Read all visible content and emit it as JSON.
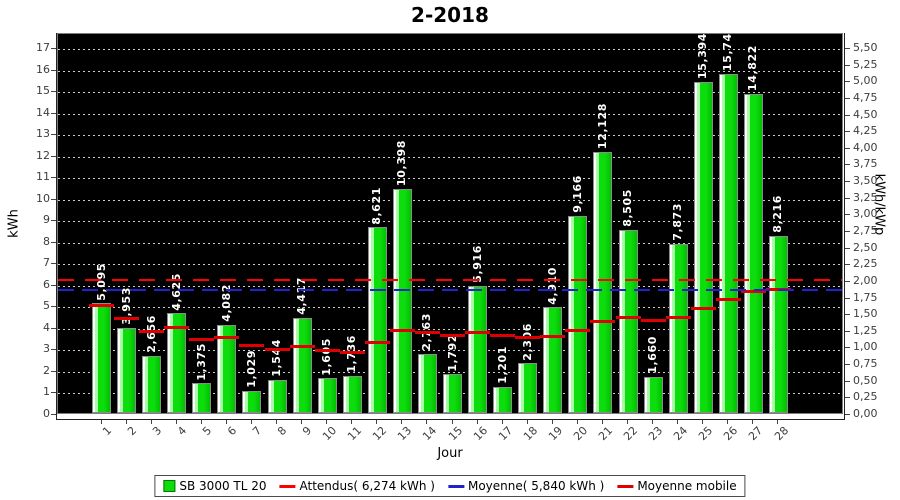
{
  "title": "2-2018",
  "colors": {
    "bar_fill": "#0ddc0d",
    "bar_fill_light": "#a6ffa6",
    "bar_border": "#8c8c8c",
    "bar_label": "#ffffff",
    "plot_bg": "#000000",
    "grid": "#ffffff",
    "attendus": "#ff0000",
    "moyenne": "#2222cc",
    "moyenne_mobile": "#e00000",
    "axis_text": "#3d3d3d"
  },
  "chart_data": {
    "type": "bar",
    "title": "2-2018",
    "xlabel": "Jour",
    "ylabel_left": "kWh",
    "ylabel_right": "kWh/kWp",
    "categories": [
      "1",
      "2",
      "3",
      "4",
      "5",
      "6",
      "7",
      "8",
      "9",
      "10",
      "11",
      "12",
      "13",
      "14",
      "15",
      "16",
      "17",
      "18",
      "19",
      "20",
      "21",
      "22",
      "23",
      "24",
      "25",
      "26",
      "27",
      "28"
    ],
    "series": [
      {
        "name": "SB 3000 TL 20",
        "type": "bar",
        "unit": "kWh",
        "values": [
          5.095,
          3.953,
          2.656,
          4.625,
          1.375,
          4.082,
          1.029,
          1.544,
          4.417,
          1.605,
          1.736,
          8.621,
          10.398,
          2.763,
          1.792,
          5.916,
          1.201,
          2.306,
          4.91,
          9.166,
          12.128,
          8.505,
          1.66,
          7.873,
          15.394,
          15.746,
          14.822,
          8.216
        ],
        "value_labels": [
          "5,095",
          "3,953",
          "2,656",
          "4,625",
          "1,375",
          "4,082",
          "1,029",
          "1,544",
          "4,417",
          "1,605",
          "1,736",
          "8,621",
          "10,398",
          "2,763",
          "1,792",
          "5,916",
          "1,201",
          "2,306",
          "4,910",
          "9,166",
          "12,128",
          "8,505",
          "1,660",
          "7,873",
          "15,394",
          "15,746",
          "14,822",
          "8,216"
        ]
      },
      {
        "name": "Attendus( 6,274 kWh )",
        "type": "hline-dashed",
        "value": 6.274
      },
      {
        "name": "Moyenne( 5,840 kWh )",
        "type": "hline-dashed",
        "value": 5.84
      },
      {
        "name": "Moyenne mobile",
        "type": "step-segments",
        "values": [
          5.095,
          4.524,
          3.901,
          4.082,
          3.541,
          3.631,
          3.259,
          3.045,
          3.197,
          3.038,
          2.92,
          3.395,
          3.934,
          3.85,
          3.713,
          3.85,
          3.695,
          3.617,
          3.685,
          3.96,
          4.348,
          4.537,
          4.412,
          4.557,
          4.99,
          5.404,
          5.753,
          5.84
        ]
      }
    ],
    "ylim_left": [
      0,
      17.7
    ],
    "yticks_left": [
      0,
      1,
      2,
      3,
      4,
      5,
      6,
      7,
      8,
      9,
      10,
      11,
      12,
      13,
      14,
      15,
      16,
      17
    ],
    "ylim_right": [
      0,
      5.5
    ],
    "yticks_right": {
      "min": 0,
      "max": 5.5,
      "step": 0.25,
      "format": "comma-decimal"
    },
    "grid": "dotted-white-horizontal",
    "legend_position": "bottom"
  },
  "legend": {
    "items": [
      {
        "label": "SB 3000 TL 20",
        "swatch": "square",
        "color": "#0ddc0d"
      },
      {
        "label": "Attendus( 6,274 kWh )",
        "swatch": "line",
        "color": "#ff0000"
      },
      {
        "label": "Moyenne( 5,840 kWh )",
        "swatch": "line",
        "color": "#2222cc"
      },
      {
        "label": "Moyenne mobile",
        "swatch": "line",
        "color": "#e00000"
      }
    ]
  }
}
